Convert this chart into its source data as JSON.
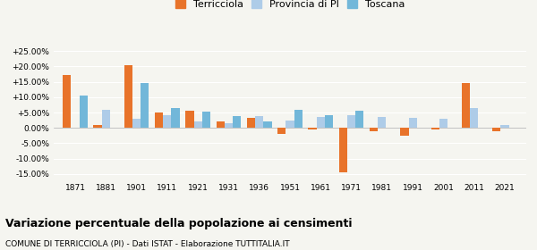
{
  "years": [
    1871,
    1881,
    1901,
    1911,
    1921,
    1931,
    1936,
    1951,
    1961,
    1971,
    1981,
    1991,
    2001,
    2011,
    2021
  ],
  "terricciola": [
    17.3,
    1.0,
    20.5,
    5.0,
    5.5,
    2.2,
    3.3,
    -2.0,
    -0.4,
    -14.5,
    -1.0,
    -2.5,
    -0.5,
    14.5,
    -1.0
  ],
  "provincia_pi": [
    null,
    6.0,
    3.0,
    4.0,
    2.0,
    1.5,
    3.8,
    2.5,
    3.5,
    4.0,
    3.5,
    3.2,
    3.0,
    6.5,
    1.0
  ],
  "toscana": [
    10.5,
    null,
    14.5,
    6.5,
    5.2,
    3.8,
    2.0,
    6.0,
    4.0,
    5.5,
    null,
    null,
    null,
    null,
    null
  ],
  "color_terricciola": "#E8732A",
  "color_provincia": "#AECCE8",
  "color_toscana": "#72B7D9",
  "title": "Variazione percentuale della popolazione ai censimenti",
  "subtitle": "COMUNE DI TERRICCIOLA (PI) - Dati ISTAT - Elaborazione TUTTITALIA.IT",
  "ylim": [
    -17,
    27
  ],
  "background": "#F5F5F0",
  "ytick_vals": [
    -15,
    -10,
    -5,
    0,
    5,
    10,
    15,
    20,
    25
  ]
}
